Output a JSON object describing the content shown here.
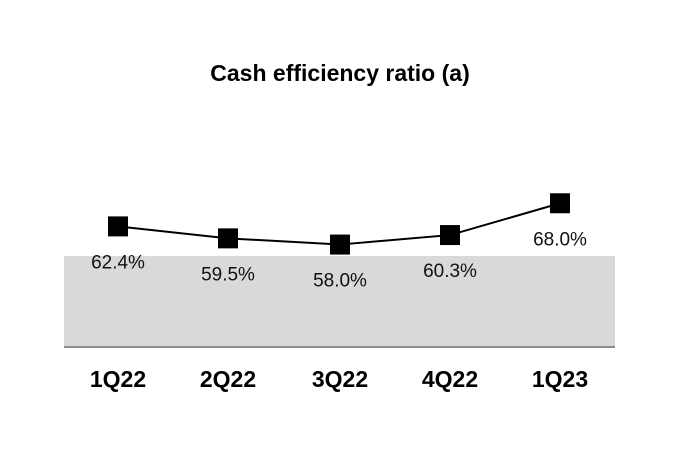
{
  "chart_data": {
    "type": "line",
    "title": "Cash efficiency ratio (a)",
    "xlabel": "",
    "ylabel": "",
    "categories": [
      "1Q22",
      "2Q22",
      "3Q22",
      "4Q22",
      "1Q23"
    ],
    "series": [
      {
        "values": [
          62.4,
          59.5,
          58.0,
          60.3,
          68.0
        ],
        "labels": [
          "62.4%",
          "59.5%",
          "58.0%",
          "60.3%",
          "68.0%"
        ],
        "color": "#000000",
        "marker": "square"
      }
    ],
    "ylim": [
      30,
      80
    ],
    "grid": false,
    "legend": "none",
    "band_color": "#d9d9d9"
  }
}
